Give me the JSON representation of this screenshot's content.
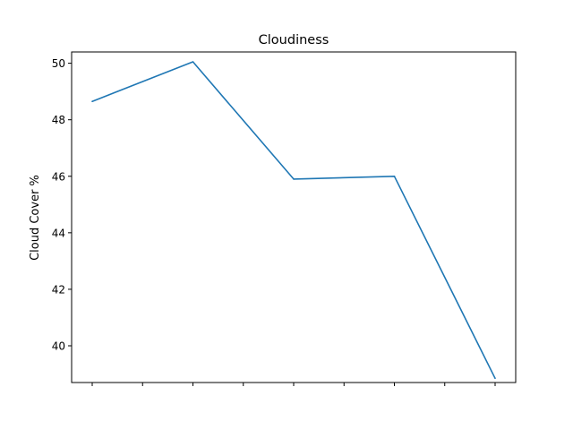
{
  "chart_data": {
    "type": "line",
    "title": "Cloudiness",
    "xlabel": "",
    "ylabel": "Cloud Cover %",
    "x_ticks_count": 9,
    "x_tick_labels": [],
    "ylim": [
      38.7,
      50.4
    ],
    "y_ticks": [
      40,
      42,
      44,
      46,
      48,
      50
    ],
    "y_tick_labels": [
      "40",
      "42",
      "44",
      "46",
      "48",
      "50"
    ],
    "grid": false,
    "series": [
      {
        "color": "#1f77b4",
        "x": [
          0,
          2,
          4,
          6,
          8
        ],
        "y": [
          48.65,
          50.05,
          45.9,
          46.0,
          38.85
        ]
      }
    ]
  }
}
